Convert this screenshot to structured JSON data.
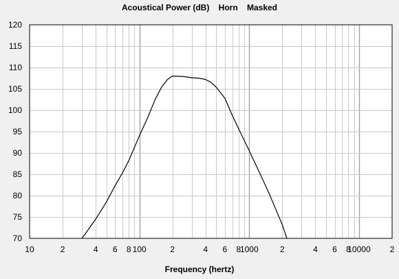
{
  "chart_data": {
    "type": "line",
    "title": "Acoustical Power (dB)    Horn    Masked",
    "xlabel": "Frequency (hertz)",
    "ylabel": "",
    "x_scale": "log",
    "xlim": [
      10,
      20000
    ],
    "ylim": [
      70,
      120
    ],
    "y_ticks": [
      70,
      75,
      80,
      85,
      90,
      95,
      100,
      105,
      110,
      115,
      120
    ],
    "x_ticks": [
      {
        "value": 10,
        "label": "10"
      },
      {
        "value": 20,
        "label": "2"
      },
      {
        "value": 40,
        "label": "4"
      },
      {
        "value": 60,
        "label": "6"
      },
      {
        "value": 80,
        "label": "8"
      },
      {
        "value": 100,
        "label": "100"
      },
      {
        "value": 200,
        "label": "2"
      },
      {
        "value": 400,
        "label": "4"
      },
      {
        "value": 600,
        "label": "6"
      },
      {
        "value": 800,
        "label": "8"
      },
      {
        "value": 1000,
        "label": "1000"
      },
      {
        "value": 2000,
        "label": "2"
      },
      {
        "value": 4000,
        "label": "4"
      },
      {
        "value": 6000,
        "label": "6"
      },
      {
        "value": 8000,
        "label": "8"
      },
      {
        "value": 10000,
        "label": "10000"
      },
      {
        "value": 20000,
        "label": "2"
      }
    ],
    "grid": true,
    "series": [
      {
        "x": [
          30,
          40,
          50,
          60,
          70,
          80,
          100,
          120,
          140,
          160,
          180,
          200,
          250,
          300,
          350,
          400,
          450,
          500,
          600,
          700,
          800,
          1000,
          1200,
          1500,
          1800,
          2000,
          2200
        ],
        "y": [
          70,
          74.5,
          78.5,
          82.3,
          85.3,
          88.2,
          94,
          98.5,
          102.7,
          105.5,
          107.2,
          108.0,
          107.9,
          107.6,
          107.5,
          107.2,
          106.5,
          105.4,
          102.8,
          98.8,
          95.7,
          90.5,
          86.2,
          80.8,
          76.0,
          73.2,
          70
        ]
      }
    ]
  },
  "colors": {
    "background": "#f0f0f0",
    "plot_area": "#ffffff",
    "grid": "#c8c8c8",
    "line": "#000000"
  }
}
